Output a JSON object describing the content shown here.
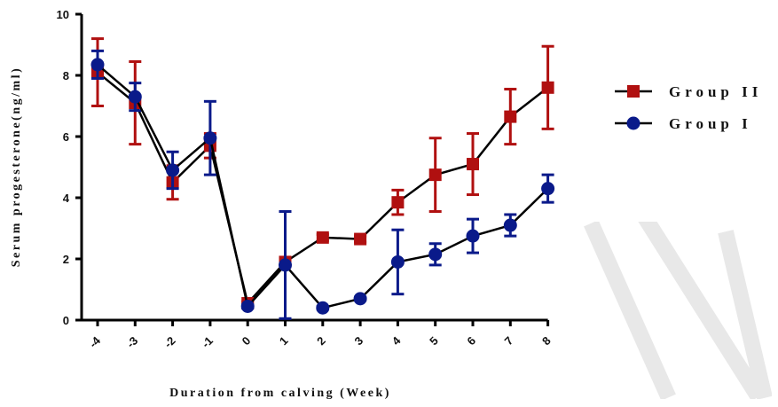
{
  "chart_data": {
    "type": "line",
    "xlabel": "Duration from calving (Week)",
    "ylabel": "Serum progesterone(ng/ml)",
    "x": [
      -4,
      -3,
      -2,
      -1,
      0,
      1,
      2,
      3,
      4,
      5,
      6,
      7,
      8
    ],
    "x_tick_labels": [
      "-4",
      "-3",
      "-2",
      "-1",
      "0",
      "1",
      "2",
      "3",
      "4",
      "5",
      "6",
      "7",
      "8"
    ],
    "ylim": [
      0,
      10
    ],
    "y_ticks": [
      0,
      2,
      4,
      6,
      8,
      10
    ],
    "y_tick_labels": [
      "0",
      "2",
      "4",
      "6",
      "8",
      "10"
    ],
    "grid": false,
    "legend_position": "right",
    "series": [
      {
        "name": "Group II",
        "marker": "square",
        "color": "#b01010",
        "values": [
          8.1,
          7.1,
          4.5,
          5.7,
          0.55,
          1.9,
          2.7,
          2.65,
          3.85,
          4.75,
          5.1,
          6.65,
          7.6
        ],
        "error": [
          1.1,
          1.35,
          0.55,
          0.4,
          0.05,
          0.1,
          0.1,
          0.1,
          0.4,
          1.2,
          1.0,
          0.9,
          1.35
        ]
      },
      {
        "name": "Group I",
        "marker": "circle",
        "color": "#0a1a8a",
        "values": [
          8.35,
          7.3,
          4.9,
          5.95,
          0.45,
          1.8,
          0.4,
          0.7,
          1.9,
          2.15,
          2.75,
          3.1,
          4.3
        ],
        "error": [
          0.45,
          0.45,
          0.6,
          1.2,
          0.05,
          1.75,
          0.05,
          0.05,
          1.05,
          0.35,
          0.55,
          0.35,
          0.45
        ]
      }
    ]
  }
}
